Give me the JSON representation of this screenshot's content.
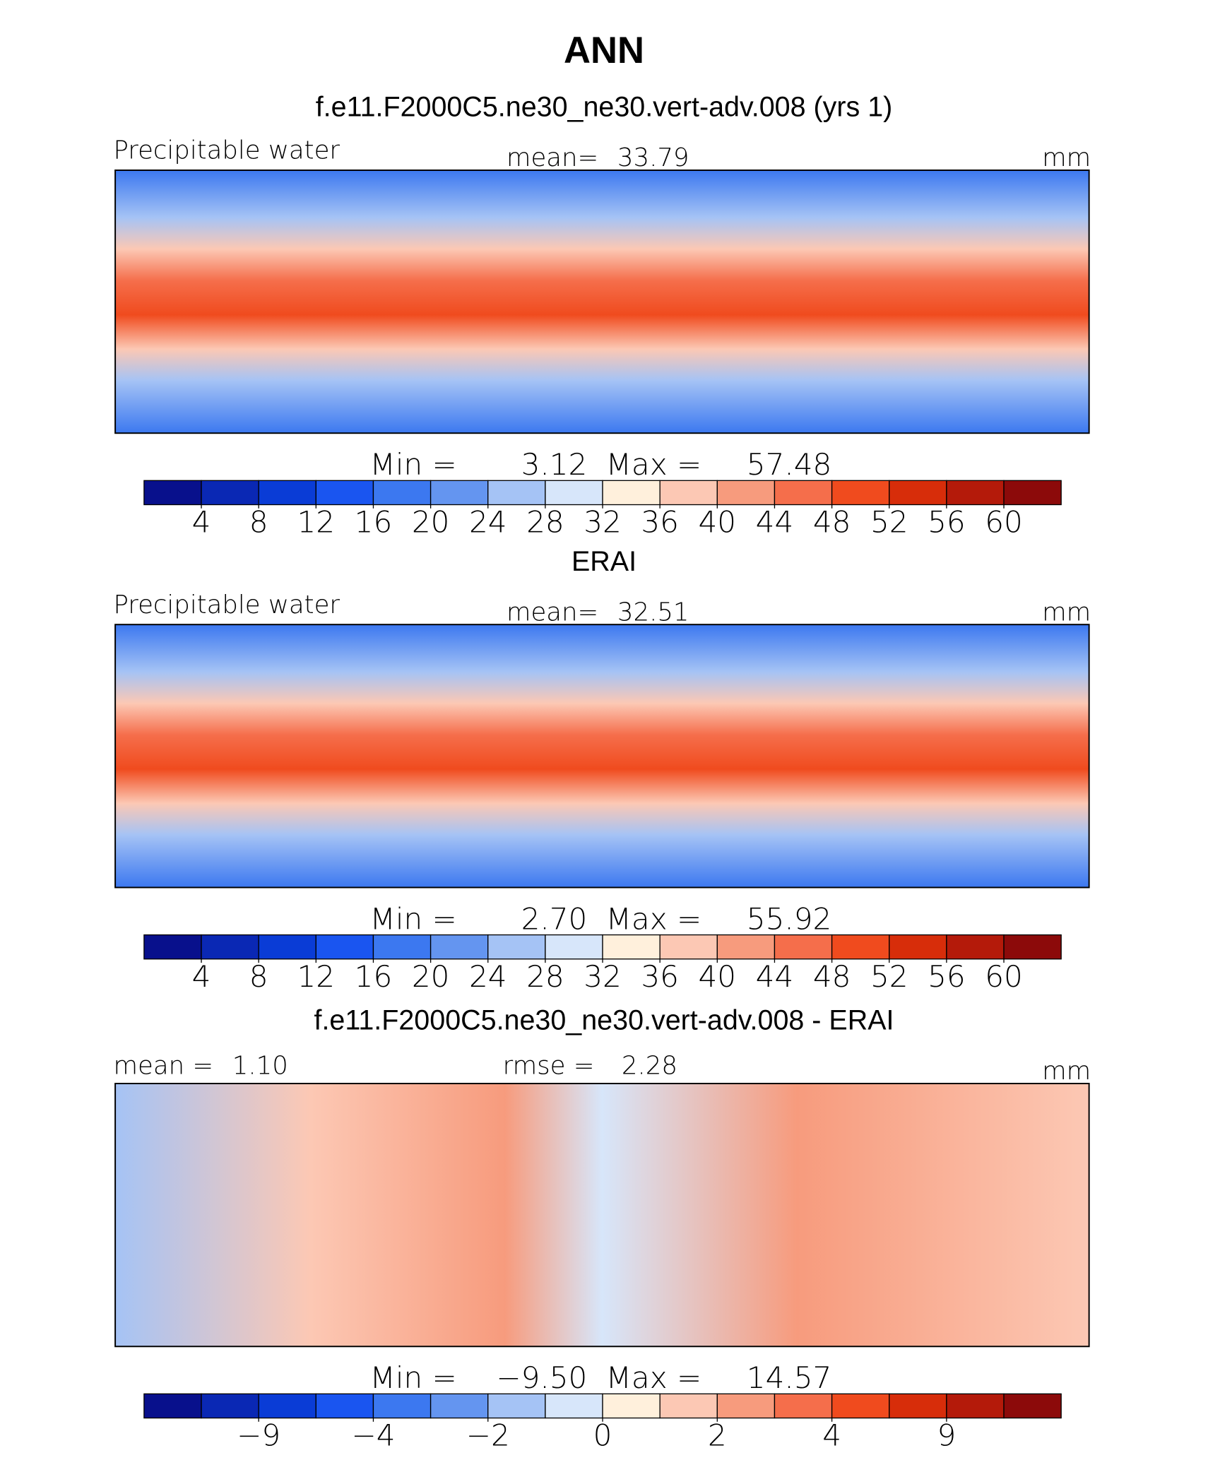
{
  "title": "ANN",
  "colors": [
    "#08108c",
    "#0a28b4",
    "#0a3cd6",
    "#1a55f0",
    "#3c78f0",
    "#6495f0",
    "#a5c3f5",
    "#d7e6fa",
    "#fff0dc",
    "#fcc8b4",
    "#f79b7d",
    "#f56e4b",
    "#f04b1e",
    "#d72d0a",
    "#b41a0a",
    "#8c0a0a"
  ],
  "panels": [
    {
      "title": "f.e11.F2000C5.ne30_ne30.vert-adv.008 (yrs 1)",
      "name": "Precipitable water",
      "units": "mm",
      "stats": [
        {
          "label": "mean=",
          "value": 33.79
        }
      ],
      "min_label": "Min =",
      "min": 3.12,
      "max_label": "Max =",
      "max": 57.48,
      "ticks": [
        4,
        8,
        12,
        16,
        20,
        24,
        28,
        32,
        36,
        40,
        44,
        48,
        52,
        56,
        60
      ]
    },
    {
      "title": "ERAI",
      "name": "Precipitable water",
      "units": "mm",
      "stats": [
        {
          "label": "mean=",
          "value": 32.51
        }
      ],
      "min_label": "Min =",
      "min": 2.7,
      "min_value_label": "2.70",
      "max_label": "Max =",
      "max": 55.92,
      "ticks": [
        4,
        8,
        12,
        16,
        20,
        24,
        28,
        32,
        36,
        40,
        44,
        48,
        52,
        56,
        60
      ]
    },
    {
      "title": "f.e11.F2000C5.ne30_ne30.vert-adv.008 - ERAI",
      "units": "mm",
      "stats": [
        {
          "label": "mean =",
          "value": 1.1,
          "value_label": "1.10"
        },
        {
          "label": "rmse =",
          "value": 2.28
        }
      ],
      "min_label": "Min =",
      "min": -9.5,
      "min_value_label": "−9.50",
      "max_label": "Max =",
      "max": 14.57,
      "ticks": [
        null,
        {
          "value": -9,
          "label": "−9"
        },
        null,
        {
          "value": -4,
          "label": "−4"
        },
        null,
        {
          "value": -2,
          "label": "−2"
        },
        null,
        0,
        null,
        2,
        null,
        4,
        null,
        9,
        null
      ]
    }
  ]
}
